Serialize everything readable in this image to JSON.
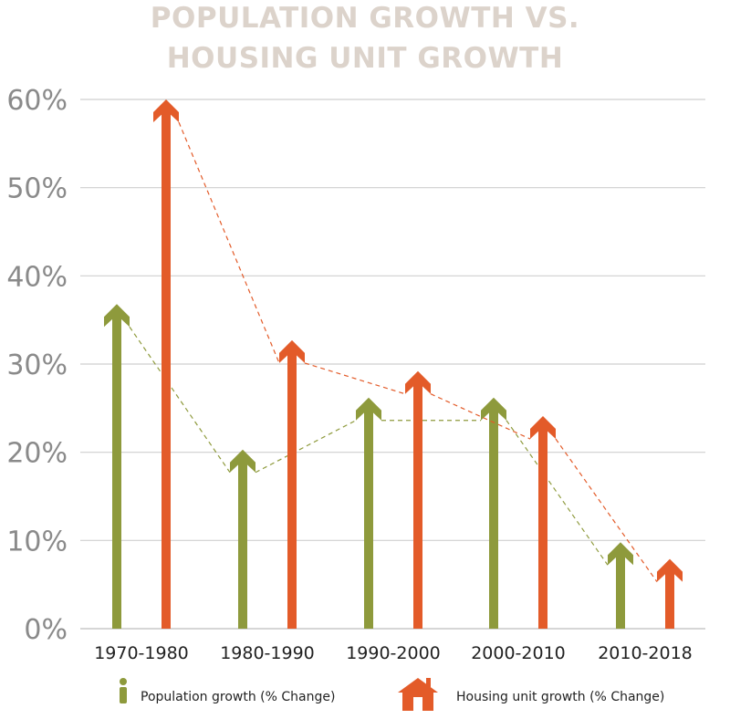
{
  "chart_data": {
    "type": "bar",
    "title_line1": "POPULATION GROWTH VS.",
    "title_line2": "HOUSING UNIT GROWTH",
    "categories": [
      "1970-1980",
      "1980-1990",
      "1990-2000",
      "2000-2010",
      "2010-2018"
    ],
    "ylim": [
      0,
      60
    ],
    "yticks": [
      "0%",
      "10%",
      "20%",
      "30%",
      "40%",
      "50%",
      "60%"
    ],
    "grid": true,
    "legend_placement": "bottom",
    "series": [
      {
        "name": "Population growth (% Change)",
        "color": "#8e9a3c",
        "icon": "person-icon",
        "values": [
          36.8,
          20.3,
          26.2,
          26.2,
          9.8
        ]
      },
      {
        "name": "Housing unit growth (% Change)",
        "color": "#e35b29",
        "icon": "house-icon",
        "values": [
          60.0,
          32.7,
          29.2,
          24.1,
          7.9
        ]
      }
    ]
  }
}
